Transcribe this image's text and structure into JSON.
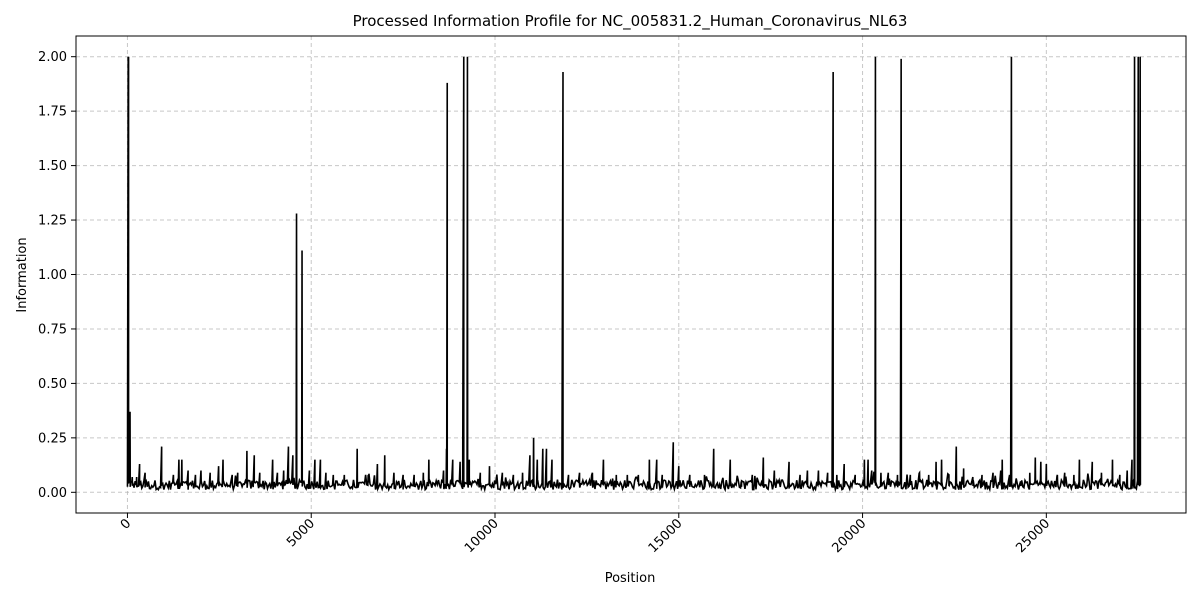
{
  "chart_data": {
    "type": "line",
    "title": "Processed Information Profile for NC_005831.2_Human_Coronavirus_NL63",
    "xlabel": "Position",
    "ylabel": "Information",
    "xlim": [
      -1400,
      28800
    ],
    "ylim": [
      -0.095,
      2.095
    ],
    "xticks": [
      0,
      5000,
      10000,
      15000,
      20000,
      25000
    ],
    "xtick_labels": [
      "0",
      "5000",
      "10000",
      "15000",
      "20000",
      "25000"
    ],
    "yticks": [
      0.0,
      0.25,
      0.5,
      0.75,
      1.0,
      1.25,
      1.5,
      1.75,
      2.0
    ],
    "ytick_labels": [
      "0.00",
      "0.25",
      "0.50",
      "0.75",
      "1.00",
      "1.25",
      "1.50",
      "1.75",
      "2.00"
    ],
    "grid": true,
    "line_color": "#000000",
    "sequence_length": 27553,
    "baseline": 0.02,
    "series": [
      {
        "values_spikes": [
          [
            20,
            2.0
          ],
          [
            30,
            2.0
          ],
          [
            70,
            0.37
          ],
          [
            130,
            0.07
          ],
          [
            250,
            0.07
          ],
          [
            330,
            0.13
          ],
          [
            480,
            0.09
          ],
          [
            930,
            0.21
          ],
          [
            1250,
            0.08
          ],
          [
            1400,
            0.15
          ],
          [
            1480,
            0.15
          ],
          [
            1650,
            0.1
          ],
          [
            1850,
            0.08
          ],
          [
            2000,
            0.1
          ],
          [
            2250,
            0.09
          ],
          [
            2480,
            0.12
          ],
          [
            2600,
            0.15
          ],
          [
            2850,
            0.08
          ],
          [
            3000,
            0.09
          ],
          [
            3250,
            0.19
          ],
          [
            3450,
            0.17
          ],
          [
            3600,
            0.09
          ],
          [
            3950,
            0.15
          ],
          [
            4080,
            0.09
          ],
          [
            4250,
            0.1
          ],
          [
            4380,
            0.21
          ],
          [
            4500,
            0.17
          ],
          [
            4600,
            1.28
          ],
          [
            4750,
            1.11
          ],
          [
            4950,
            0.1
          ],
          [
            5100,
            0.15
          ],
          [
            5250,
            0.15
          ],
          [
            5400,
            0.09
          ],
          [
            5600,
            0.08
          ],
          [
            5900,
            0.08
          ],
          [
            6250,
            0.2
          ],
          [
            6550,
            0.08
          ],
          [
            6800,
            0.13
          ],
          [
            7000,
            0.17
          ],
          [
            7250,
            0.09
          ],
          [
            7500,
            0.08
          ],
          [
            7800,
            0.08
          ],
          [
            8050,
            0.09
          ],
          [
            8200,
            0.15
          ],
          [
            8600,
            0.1
          ],
          [
            8680,
            0.2
          ],
          [
            8700,
            1.88
          ],
          [
            8850,
            0.15
          ],
          [
            9050,
            0.14
          ],
          [
            9150,
            2.0
          ],
          [
            9250,
            2.0
          ],
          [
            9300,
            0.15
          ],
          [
            9600,
            0.09
          ],
          [
            9850,
            0.12
          ],
          [
            10200,
            0.09
          ],
          [
            10500,
            0.08
          ],
          [
            10750,
            0.09
          ],
          [
            10950,
            0.17
          ],
          [
            11050,
            0.25
          ],
          [
            11150,
            0.15
          ],
          [
            11300,
            0.2
          ],
          [
            11400,
            0.2
          ],
          [
            11550,
            0.15
          ],
          [
            11850,
            1.93
          ],
          [
            12000,
            0.08
          ],
          [
            12300,
            0.09
          ],
          [
            12650,
            0.09
          ],
          [
            12950,
            0.15
          ],
          [
            13300,
            0.08
          ],
          [
            13600,
            0.08
          ],
          [
            13900,
            0.08
          ],
          [
            14200,
            0.15
          ],
          [
            14400,
            0.15
          ],
          [
            14550,
            0.08
          ],
          [
            14850,
            0.23
          ],
          [
            15000,
            0.12
          ],
          [
            15300,
            0.08
          ],
          [
            15700,
            0.08
          ],
          [
            15950,
            0.2
          ],
          [
            16400,
            0.15
          ],
          [
            16700,
            0.05
          ],
          [
            17000,
            0.08
          ],
          [
            17300,
            0.16
          ],
          [
            17600,
            0.1
          ],
          [
            18000,
            0.14
          ],
          [
            18300,
            0.08
          ],
          [
            18500,
            0.1
          ],
          [
            18800,
            0.1
          ],
          [
            19050,
            0.09
          ],
          [
            19200,
            1.93
          ],
          [
            19300,
            0.08
          ],
          [
            19500,
            0.13
          ],
          [
            19800,
            0.08
          ],
          [
            20050,
            0.15
          ],
          [
            20150,
            0.15
          ],
          [
            20250,
            0.1
          ],
          [
            20350,
            2.0
          ],
          [
            20500,
            0.09
          ],
          [
            20700,
            0.09
          ],
          [
            20950,
            0.08
          ],
          [
            21050,
            1.99
          ],
          [
            21300,
            0.08
          ],
          [
            21550,
            0.09
          ],
          [
            21800,
            0.08
          ],
          [
            22000,
            0.14
          ],
          [
            22150,
            0.15
          ],
          [
            22350,
            0.08
          ],
          [
            22550,
            0.21
          ],
          [
            22750,
            0.11
          ],
          [
            23000,
            0.07
          ],
          [
            23250,
            0.08
          ],
          [
            23550,
            0.09
          ],
          [
            23800,
            0.15
          ],
          [
            24000,
            0.08
          ],
          [
            24050,
            2.0
          ],
          [
            24300,
            0.05
          ],
          [
            24550,
            0.09
          ],
          [
            24700,
            0.16
          ],
          [
            24850,
            0.14
          ],
          [
            25000,
            0.13
          ],
          [
            25300,
            0.08
          ],
          [
            25500,
            0.09
          ],
          [
            25750,
            0.08
          ],
          [
            25900,
            0.15
          ],
          [
            26250,
            0.14
          ],
          [
            26500,
            0.09
          ],
          [
            26800,
            0.15
          ],
          [
            27000,
            0.08
          ],
          [
            27200,
            0.1
          ],
          [
            27330,
            0.15
          ],
          [
            27400,
            2.0
          ],
          [
            27500,
            2.0
          ],
          [
            27553,
            2.0
          ]
        ]
      }
    ]
  }
}
